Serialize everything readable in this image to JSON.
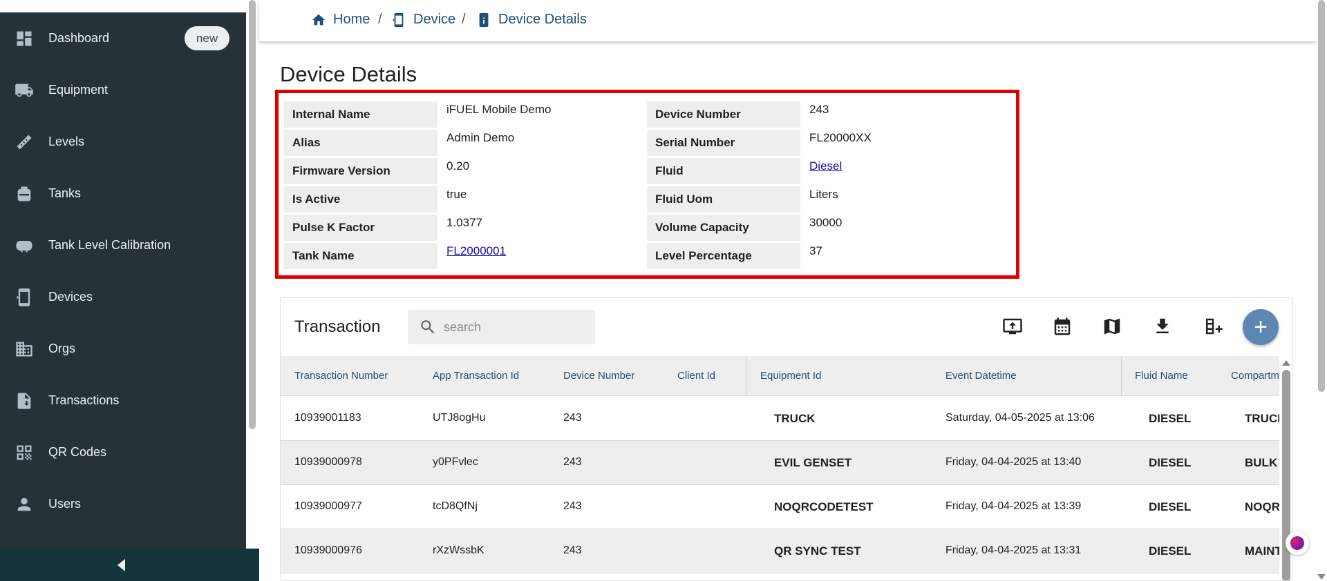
{
  "sidebar": {
    "items": [
      {
        "label": "Dashboard",
        "icon": "dashboard-icon",
        "badge": "new"
      },
      {
        "label": "Equipment",
        "icon": "truck-icon"
      },
      {
        "label": "Levels",
        "icon": "ruler-icon"
      },
      {
        "label": "Tanks",
        "icon": "tank-icon"
      },
      {
        "label": "Tank Level Calibration",
        "icon": "calibration-icon"
      },
      {
        "label": "Devices",
        "icon": "device-icon"
      },
      {
        "label": "Orgs",
        "icon": "building-icon"
      },
      {
        "label": "Transactions",
        "icon": "transaction-doc-icon"
      },
      {
        "label": "QR Codes",
        "icon": "qr-code-icon"
      },
      {
        "label": "Users",
        "icon": "user-icon"
      }
    ],
    "collapse_icon": "collapse-left-icon"
  },
  "breadcrumb": {
    "home": "Home",
    "device": "Device",
    "details": "Device Details",
    "separator": "/"
  },
  "page_title": "Device Details",
  "details": {
    "left": [
      {
        "label": "Internal Name",
        "value": "iFUEL Mobile Demo"
      },
      {
        "label": "Alias",
        "value": "Admin Demo"
      },
      {
        "label": "Firmware Version",
        "value": "0.20"
      },
      {
        "label": "Is Active",
        "value": "true"
      },
      {
        "label": "Pulse K Factor",
        "value": "1.0377"
      },
      {
        "label": "Tank Name",
        "value": "FL2000001"
      }
    ],
    "right": [
      {
        "label": "Device Number",
        "value": "243"
      },
      {
        "label": "Serial Number",
        "value": "FL20000XX"
      },
      {
        "label": "Fluid",
        "value": "Diesel"
      },
      {
        "label": "Fluid Uom",
        "value": "Liters"
      },
      {
        "label": "Volume Capacity",
        "value": "30000"
      },
      {
        "label": "Level Percentage",
        "value": "37"
      }
    ],
    "highlight_color": "#e00000"
  },
  "transactions": {
    "title": "Transaction",
    "search_placeholder": "search",
    "toolbar_icons": [
      "upload-monitor-icon",
      "calendar-icon",
      "map-icon",
      "download-icon",
      "add-column-icon"
    ],
    "add_button": "+",
    "accent_color": "#5c87b2",
    "columns": [
      "Transaction Number",
      "App Transaction Id",
      "Device Number",
      "Client Id",
      "Equipment Id",
      "Event Datetime",
      "Fluid Name",
      "Compartm"
    ],
    "rows": [
      {
        "txn": "10939001183",
        "app": "UTJ8ogHu",
        "device": "243",
        "client": "",
        "equipment": "TRUCK",
        "datetime": "Saturday, 04-05-2025 at 13:06",
        "fluid": "DIESEL",
        "compartment": "TRUCK"
      },
      {
        "txn": "10939000978",
        "app": "y0PFvlec",
        "device": "243",
        "client": "",
        "equipment": "EVIL GENSET",
        "datetime": "Friday, 04-04-2025 at 13:40",
        "fluid": "DIESEL",
        "compartment": "BULK"
      },
      {
        "txn": "10939000977",
        "app": "tcD8QfNj",
        "device": "243",
        "client": "",
        "equipment": "NOQRCODETEST",
        "datetime": "Friday, 04-04-2025 at 13:39",
        "fluid": "DIESEL",
        "compartment": "NOQRC"
      },
      {
        "txn": "10939000976",
        "app": "rXzWssbK",
        "device": "243",
        "client": "",
        "equipment": "QR SYNC TEST",
        "datetime": "Friday, 04-04-2025 at 13:31",
        "fluid": "DIESEL",
        "compartment": "MAINT"
      }
    ]
  }
}
